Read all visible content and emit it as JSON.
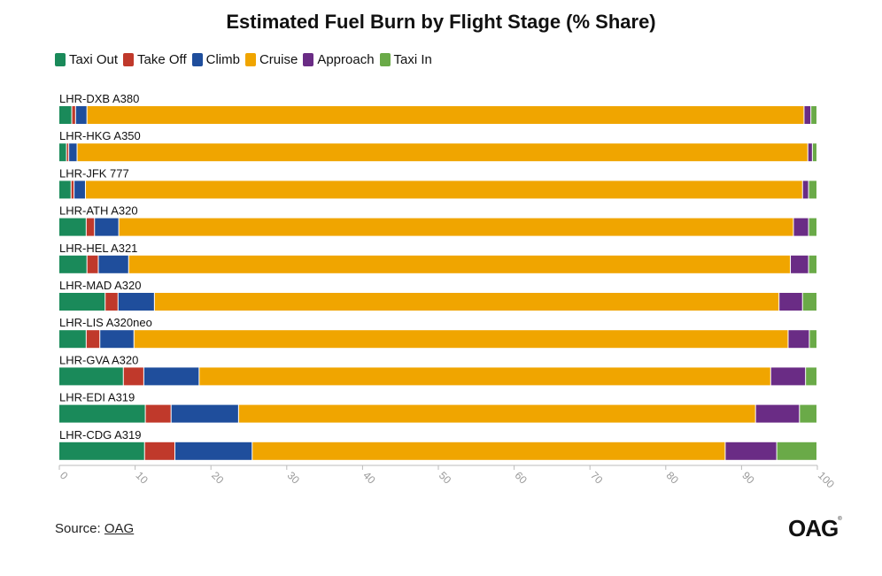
{
  "chart_data": {
    "type": "bar",
    "orientation": "horizontal",
    "stacked": true,
    "title": "Estimated Fuel Burn by Flight Stage (% Share)",
    "categories": [
      "LHR-DXB A380",
      "LHR-HKG A350",
      "LHR-JFK 777",
      "LHR-ATH A320",
      "LHR-HEL A321",
      "LHR-MAD A320",
      "LHR-LIS A320neo",
      "LHR-GVA A320",
      "LHR-EDI A319",
      "LHR-CDG A319"
    ],
    "series": [
      {
        "name": "Taxi Out",
        "color": "#1a8a5a",
        "values": [
          1.7,
          1.0,
          1.6,
          3.6,
          3.7,
          6.1,
          3.6,
          8.5,
          11.4,
          11.3
        ]
      },
      {
        "name": "Take Off",
        "color": "#c0392b",
        "values": [
          0.5,
          0.3,
          0.4,
          1.1,
          1.5,
          1.7,
          1.8,
          2.7,
          3.4,
          4.0
        ]
      },
      {
        "name": "Climb",
        "color": "#1f4e9c",
        "values": [
          1.5,
          1.1,
          1.5,
          3.2,
          4.0,
          4.8,
          4.5,
          7.3,
          8.9,
          10.2
        ]
      },
      {
        "name": "Cruise",
        "color": "#f0a500",
        "values": [
          94.6,
          96.4,
          94.6,
          89.0,
          87.3,
          82.4,
          86.3,
          75.4,
          68.2,
          62.4
        ]
      },
      {
        "name": "Approach",
        "color": "#6a2c85",
        "values": [
          0.9,
          0.6,
          0.8,
          2.0,
          2.4,
          3.1,
          2.8,
          4.6,
          5.8,
          6.8
        ]
      },
      {
        "name": "Taxi In",
        "color": "#6aaa48",
        "values": [
          0.8,
          0.6,
          1.1,
          1.1,
          1.1,
          1.9,
          1.0,
          1.5,
          2.3,
          5.3
        ]
      }
    ],
    "xlim": [
      0,
      100
    ],
    "xticks": [
      "0",
      "10",
      "20",
      "30",
      "40",
      "50",
      "60",
      "70",
      "80",
      "90",
      "100"
    ],
    "grid": false,
    "legend_position": "top-left"
  },
  "source": {
    "label": "Source:",
    "link_text": "OAG"
  },
  "logo": {
    "text": "OAG"
  }
}
